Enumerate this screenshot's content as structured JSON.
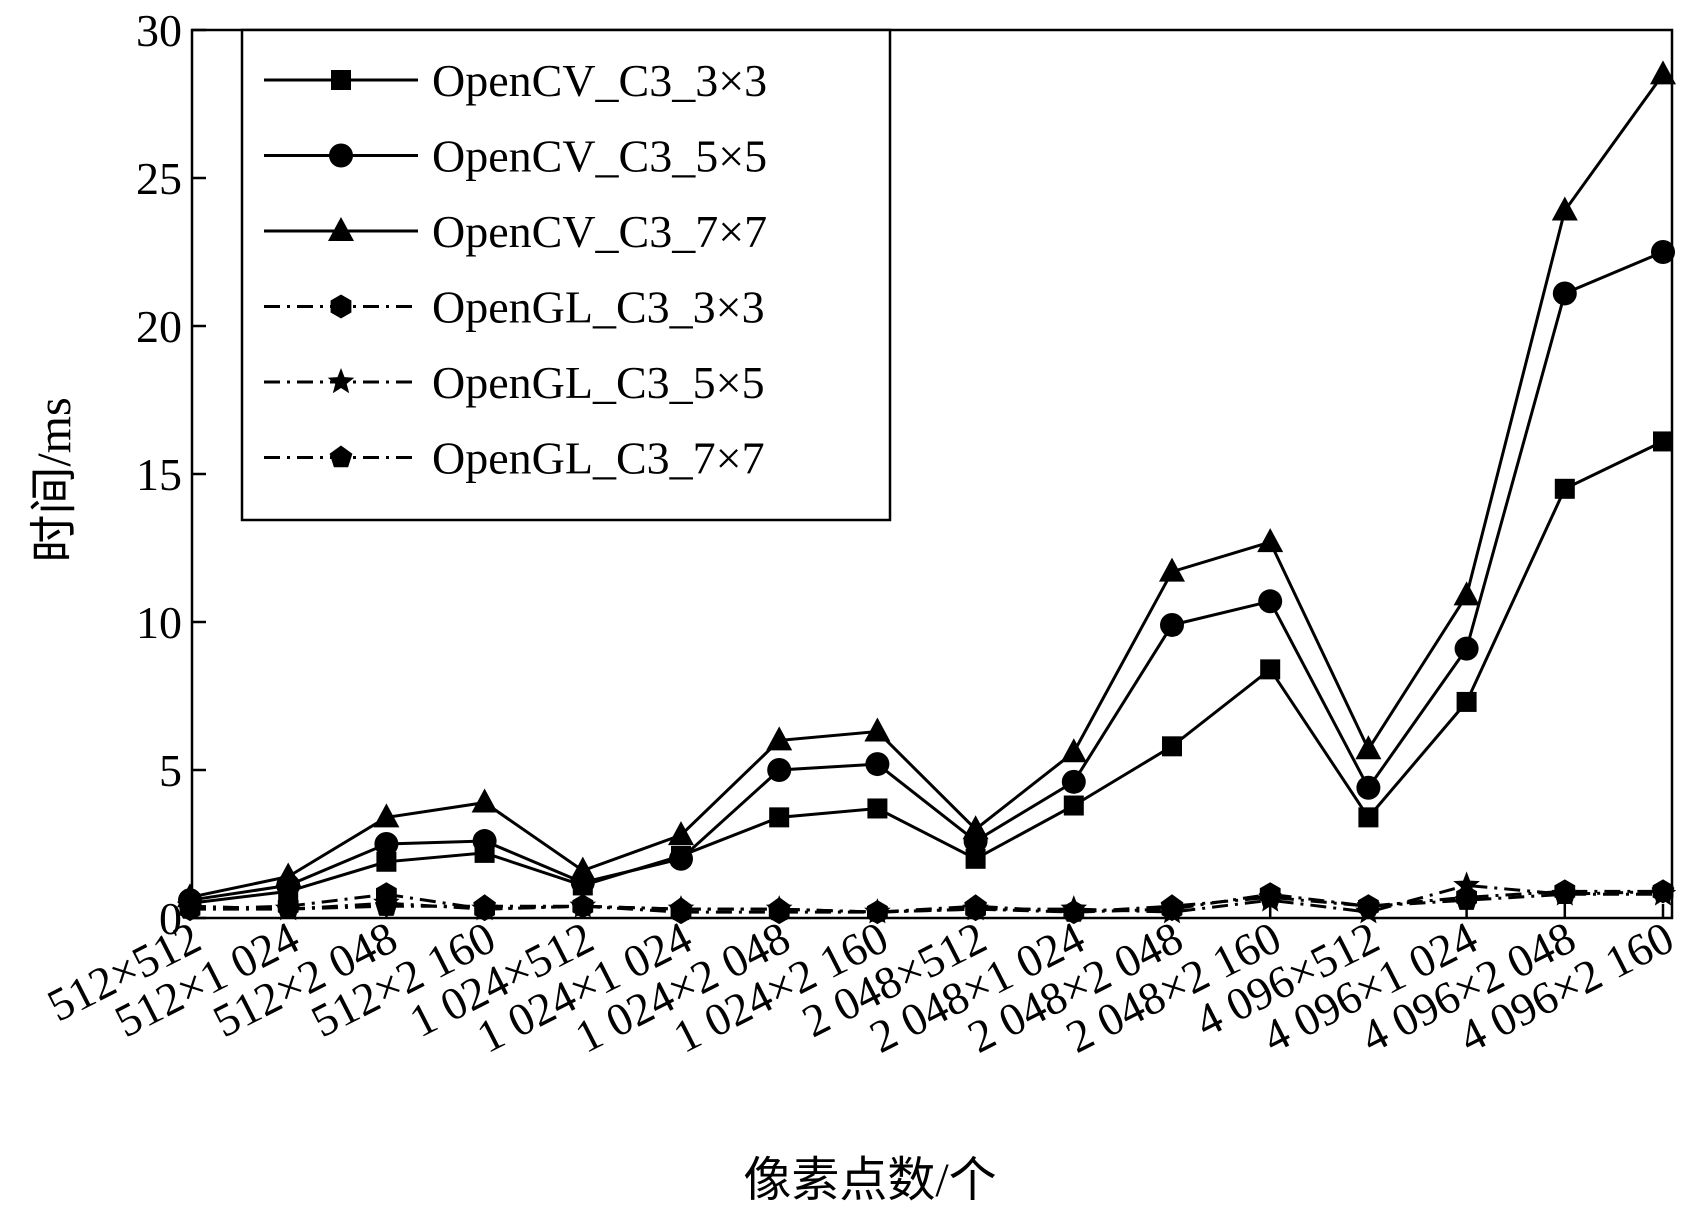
{
  "chart_data": {
    "type": "line",
    "xlabel": "像素点数/个",
    "ylabel": "时间/ms",
    "ylim": [
      0,
      30
    ],
    "yticks": [
      "0",
      "5",
      "10",
      "15",
      "20",
      "25",
      "30"
    ],
    "categories": [
      "512×512",
      "512×1 024",
      "512×2 048",
      "512×2 160",
      "1 024×512",
      "1 024×1 024",
      "1 024×2 048",
      "1 024×2 160",
      "2 048×512",
      "2 048×1 024",
      "2 048×2 048",
      "2 048×2 160",
      "4 096×512",
      "4 096×1 024",
      "4 096×2 048",
      "4 096×2 160"
    ],
    "grid": false,
    "legend_position": "top-left",
    "series": [
      {
        "name": "OpenCV_C3_3×3",
        "marker": "square",
        "line": "solid",
        "values": [
          0.5,
          0.9,
          1.9,
          2.2,
          1.1,
          2.1,
          3.4,
          3.7,
          2.0,
          3.8,
          5.8,
          8.4,
          3.4,
          7.3,
          14.5,
          16.1
        ]
      },
      {
        "name": "OpenCV_C3_5×5",
        "marker": "circle",
        "line": "solid",
        "values": [
          0.6,
          1.1,
          2.5,
          2.6,
          1.2,
          2.0,
          5.0,
          5.2,
          2.6,
          4.6,
          9.9,
          10.7,
          4.4,
          9.1,
          21.1,
          22.5
        ]
      },
      {
        "name": "OpenCV_C3_7×7",
        "marker": "triangle",
        "line": "solid",
        "values": [
          0.7,
          1.4,
          3.4,
          3.9,
          1.6,
          2.8,
          6.0,
          6.3,
          3.0,
          5.6,
          11.7,
          12.7,
          5.7,
          10.9,
          23.9,
          28.5
        ]
      },
      {
        "name": "OpenGL_C3_3×3",
        "marker": "hexagon",
        "line": "dashdot",
        "values": [
          0.3,
          0.4,
          0.8,
          0.3,
          0.4,
          0.2,
          0.2,
          0.2,
          0.3,
          0.2,
          0.3,
          0.8,
          0.4,
          0.7,
          0.9,
          0.9
        ]
      },
      {
        "name": "OpenGL_C3_5×5",
        "marker": "star",
        "line": "dashdot",
        "values": [
          0.4,
          0.3,
          0.5,
          0.3,
          0.4,
          0.3,
          0.3,
          0.2,
          0.3,
          0.3,
          0.2,
          0.6,
          0.2,
          1.1,
          0.8,
          0.8
        ]
      },
      {
        "name": "OpenGL_C3_7×7",
        "marker": "pentagon",
        "line": "dashdot",
        "values": [
          0.3,
          0.3,
          0.4,
          0.4,
          0.4,
          0.3,
          0.3,
          0.2,
          0.4,
          0.2,
          0.4,
          0.7,
          0.4,
          0.6,
          0.8,
          0.9
        ]
      }
    ]
  }
}
